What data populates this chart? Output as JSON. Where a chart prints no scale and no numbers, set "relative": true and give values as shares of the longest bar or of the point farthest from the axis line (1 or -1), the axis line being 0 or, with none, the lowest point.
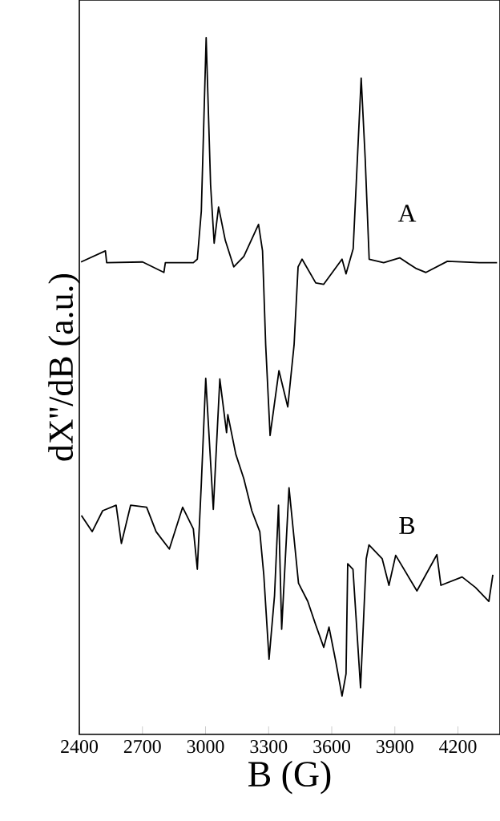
{
  "chart_data": {
    "type": "line",
    "relative": true,
    "xlabel": "B (G)",
    "ylabel": "dX''/dB (a.u.)",
    "xlim": [
      2400,
      4400
    ],
    "xticks": [
      2400,
      2700,
      3000,
      3300,
      3600,
      3900,
      4200
    ],
    "legend": false,
    "marker": "none",
    "line_style": "solid",
    "series": [
      {
        "name": "A",
        "color": "#000000",
        "x": [
          2408,
          2524,
          2530,
          2701,
          2802,
          2809,
          2942,
          2961,
          2980,
          3003,
          3024,
          3041,
          3062,
          3094,
          3134,
          3182,
          3252,
          3271,
          3286,
          3307,
          3349,
          3391,
          3421,
          3440,
          3459,
          3524,
          3562,
          3649,
          3668,
          3702,
          3740,
          3759,
          3778,
          3847,
          3923,
          3999,
          4048,
          4150,
          4302,
          4386
        ],
        "values": [
          0.678,
          0.694,
          0.677,
          0.678,
          0.663,
          0.677,
          0.677,
          0.682,
          0.751,
          1.0,
          0.789,
          0.705,
          0.757,
          0.709,
          0.671,
          0.686,
          0.732,
          0.694,
          0.559,
          0.429,
          0.522,
          0.47,
          0.559,
          0.671,
          0.682,
          0.648,
          0.646,
          0.682,
          0.661,
          0.697,
          0.942,
          0.827,
          0.682,
          0.677,
          0.684,
          0.669,
          0.663,
          0.679,
          0.677,
          0.677
        ]
      },
      {
        "name": "B",
        "color": "#000000",
        "x": [
          2410,
          2461,
          2511,
          2575,
          2600,
          2644,
          2720,
          2765,
          2828,
          2891,
          2942,
          2961,
          2980,
          3001,
          3037,
          3068,
          3100,
          3106,
          3144,
          3182,
          3220,
          3258,
          3277,
          3302,
          3328,
          3347,
          3362,
          3397,
          3423,
          3442,
          3486,
          3524,
          3562,
          3587,
          3619,
          3649,
          3668,
          3676,
          3701,
          3737,
          3764,
          3777,
          3840,
          3872,
          3904,
          4005,
          4100,
          4119,
          4220,
          4283,
          4347,
          4366
        ],
        "values": [
          0.314,
          0.291,
          0.321,
          0.329,
          0.274,
          0.329,
          0.326,
          0.291,
          0.266,
          0.326,
          0.295,
          0.237,
          0.36,
          0.511,
          0.323,
          0.51,
          0.433,
          0.459,
          0.402,
          0.367,
          0.321,
          0.291,
          0.229,
          0.108,
          0.199,
          0.329,
          0.151,
          0.354,
          0.275,
          0.217,
          0.191,
          0.157,
          0.125,
          0.154,
          0.105,
          0.055,
          0.087,
          0.245,
          0.237,
          0.067,
          0.252,
          0.272,
          0.252,
          0.214,
          0.257,
          0.206,
          0.258,
          0.214,
          0.226,
          0.211,
          0.191,
          0.229
        ]
      }
    ]
  }
}
